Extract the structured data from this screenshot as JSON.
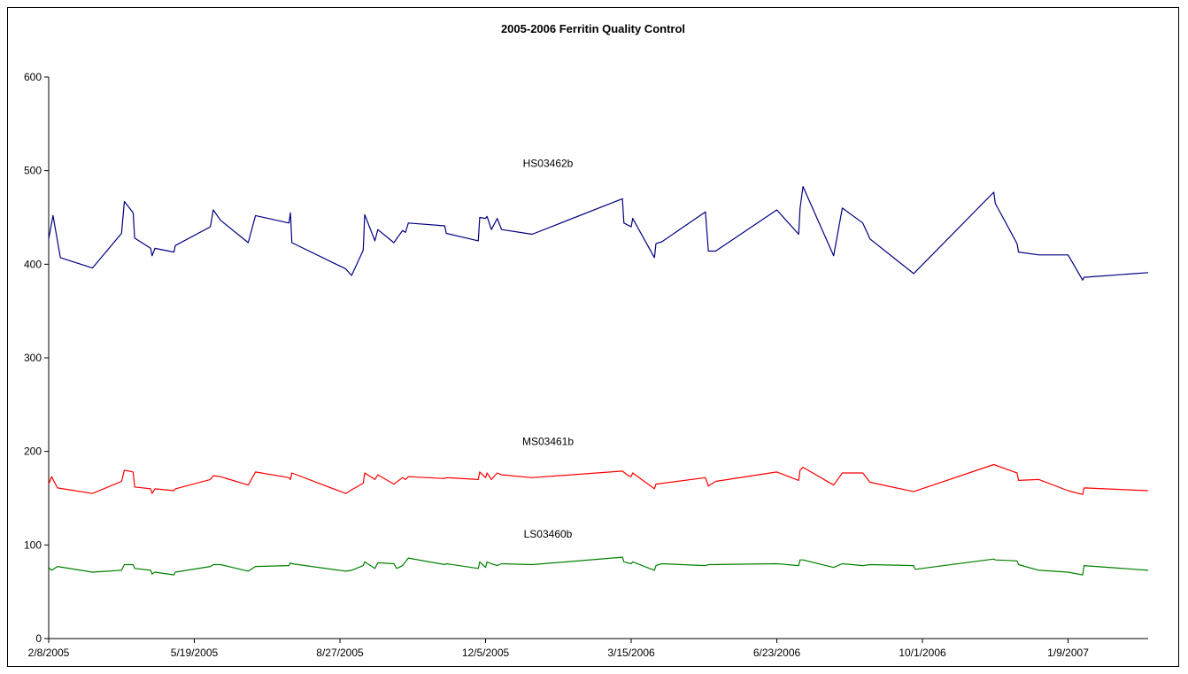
{
  "chart_data": {
    "type": "line",
    "title": "2005-2006 Ferritin Quality Control",
    "xlabel": "",
    "ylabel": "",
    "ylim": [
      0,
      600
    ],
    "yticks": [
      0,
      100,
      200,
      300,
      400,
      500,
      600
    ],
    "xlim": [
      "2005-02-08",
      "2007-03-05"
    ],
    "xticks": [
      {
        "date": "2005-02-08",
        "label": "2/8/2005"
      },
      {
        "date": "2005-05-19",
        "label": "5/19/2005"
      },
      {
        "date": "2005-08-27",
        "label": "8/27/2005"
      },
      {
        "date": "2005-12-05",
        "label": "12/5/2005"
      },
      {
        "date": "2006-03-15",
        "label": "3/15/2006"
      },
      {
        "date": "2006-06-23",
        "label": "6/23/2006"
      },
      {
        "date": "2006-10-01",
        "label": "10/1/2006"
      },
      {
        "date": "2007-01-09",
        "label": "1/9/2007"
      }
    ],
    "grid": false,
    "legend": "none",
    "series": [
      {
        "name": "HS03462b",
        "color": "#000080",
        "points": [
          [
            "2005-02-08",
            427
          ],
          [
            "2005-02-11",
            452
          ],
          [
            "2005-02-16",
            407
          ],
          [
            "2005-03-10",
            396
          ],
          [
            "2005-03-30",
            433
          ],
          [
            "2005-04-01",
            467
          ],
          [
            "2005-04-07",
            455
          ],
          [
            "2005-04-08",
            428
          ],
          [
            "2005-04-19",
            417
          ],
          [
            "2005-04-20",
            409
          ],
          [
            "2005-04-22",
            417
          ],
          [
            "2005-05-05",
            413
          ],
          [
            "2005-05-06",
            420
          ],
          [
            "2005-05-30",
            440
          ],
          [
            "2005-06-01",
            458
          ],
          [
            "2005-06-06",
            447
          ],
          [
            "2005-06-25",
            423
          ],
          [
            "2005-06-30",
            452
          ],
          [
            "2005-07-23",
            444
          ],
          [
            "2005-07-24",
            455
          ],
          [
            "2005-07-25",
            423
          ],
          [
            "2005-08-31",
            395
          ],
          [
            "2005-09-04",
            388
          ],
          [
            "2005-09-12",
            415
          ],
          [
            "2005-09-13",
            453
          ],
          [
            "2005-09-20",
            425
          ],
          [
            "2005-09-22",
            437
          ],
          [
            "2005-10-03",
            423
          ],
          [
            "2005-10-09",
            436
          ],
          [
            "2005-10-11",
            434
          ],
          [
            "2005-10-13",
            444
          ],
          [
            "2005-11-07",
            441
          ],
          [
            "2005-11-08",
            433
          ],
          [
            "2005-11-30",
            425
          ],
          [
            "2005-12-01",
            450
          ],
          [
            "2005-12-05",
            449
          ],
          [
            "2005-12-06",
            451
          ],
          [
            "2005-12-09",
            437
          ],
          [
            "2005-12-13",
            449
          ],
          [
            "2005-12-16",
            437
          ],
          [
            "2006-01-06",
            432
          ],
          [
            "2006-03-09",
            470
          ],
          [
            "2006-03-10",
            444
          ],
          [
            "2006-03-15",
            440
          ],
          [
            "2006-03-16",
            449
          ],
          [
            "2006-03-31",
            407
          ],
          [
            "2006-04-01",
            422
          ],
          [
            "2006-04-05",
            424
          ],
          [
            "2006-05-05",
            456
          ],
          [
            "2006-05-07",
            414
          ],
          [
            "2006-05-12",
            414
          ],
          [
            "2006-06-23",
            458
          ],
          [
            "2006-07-08",
            432
          ],
          [
            "2006-07-09",
            460
          ],
          [
            "2006-07-11",
            483
          ],
          [
            "2006-08-01",
            409
          ],
          [
            "2006-08-07",
            460
          ],
          [
            "2006-08-21",
            444
          ],
          [
            "2006-08-26",
            427
          ],
          [
            "2006-09-25",
            390
          ],
          [
            "2006-11-19",
            477
          ],
          [
            "2006-11-20",
            465
          ],
          [
            "2006-12-05",
            422
          ],
          [
            "2006-12-06",
            413
          ],
          [
            "2006-12-20",
            410
          ],
          [
            "2007-01-09",
            410
          ],
          [
            "2007-01-19",
            383
          ],
          [
            "2007-01-20",
            386
          ],
          [
            "2007-03-05",
            391
          ]
        ]
      },
      {
        "name": "MS03461b",
        "color": "#ff0000",
        "points": [
          [
            "2005-02-08",
            165
          ],
          [
            "2005-02-10",
            173
          ],
          [
            "2005-02-14",
            161
          ],
          [
            "2005-03-10",
            155
          ],
          [
            "2005-03-30",
            168
          ],
          [
            "2005-04-01",
            180
          ],
          [
            "2005-04-07",
            178
          ],
          [
            "2005-04-08",
            162
          ],
          [
            "2005-04-19",
            160
          ],
          [
            "2005-04-20",
            155
          ],
          [
            "2005-04-22",
            160
          ],
          [
            "2005-05-05",
            158
          ],
          [
            "2005-05-06",
            160
          ],
          [
            "2005-05-30",
            170
          ],
          [
            "2005-06-01",
            174
          ],
          [
            "2005-06-06",
            173
          ],
          [
            "2005-06-25",
            164
          ],
          [
            "2005-06-30",
            178
          ],
          [
            "2005-07-23",
            172
          ],
          [
            "2005-07-24",
            170
          ],
          [
            "2005-07-25",
            177
          ],
          [
            "2005-08-31",
            155
          ],
          [
            "2005-09-04",
            159
          ],
          [
            "2005-09-12",
            166
          ],
          [
            "2005-09-13",
            177
          ],
          [
            "2005-09-20",
            170
          ],
          [
            "2005-09-22",
            175
          ],
          [
            "2005-10-03",
            165
          ],
          [
            "2005-10-09",
            172
          ],
          [
            "2005-10-11",
            170
          ],
          [
            "2005-10-13",
            173
          ],
          [
            "2005-11-07",
            171
          ],
          [
            "2005-11-08",
            172
          ],
          [
            "2005-11-30",
            170
          ],
          [
            "2005-12-01",
            178
          ],
          [
            "2005-12-05",
            172
          ],
          [
            "2005-12-06",
            177
          ],
          [
            "2005-12-09",
            170
          ],
          [
            "2005-12-13",
            177
          ],
          [
            "2005-12-16",
            175
          ],
          [
            "2006-01-06",
            172
          ],
          [
            "2006-03-09",
            179
          ],
          [
            "2006-03-13",
            174
          ],
          [
            "2006-03-15",
            173
          ],
          [
            "2006-03-16",
            177
          ],
          [
            "2006-03-31",
            160
          ],
          [
            "2006-04-01",
            165
          ],
          [
            "2006-05-05",
            172
          ],
          [
            "2006-05-07",
            163
          ],
          [
            "2006-05-12",
            168
          ],
          [
            "2006-06-23",
            178
          ],
          [
            "2006-07-08",
            169
          ],
          [
            "2006-07-09",
            180
          ],
          [
            "2006-07-11",
            183
          ],
          [
            "2006-08-01",
            164
          ],
          [
            "2006-08-07",
            177
          ],
          [
            "2006-08-21",
            177
          ],
          [
            "2006-08-26",
            167
          ],
          [
            "2006-09-25",
            157
          ],
          [
            "2006-11-19",
            186
          ],
          [
            "2006-12-05",
            177
          ],
          [
            "2006-12-06",
            169
          ],
          [
            "2006-12-20",
            170
          ],
          [
            "2007-01-09",
            158
          ],
          [
            "2007-01-19",
            154
          ],
          [
            "2007-01-20",
            161
          ],
          [
            "2007-03-05",
            158
          ]
        ]
      },
      {
        "name": "LS03460b",
        "color": "#008000",
        "points": [
          [
            "2005-02-08",
            76
          ],
          [
            "2005-02-10",
            73
          ],
          [
            "2005-02-14",
            77
          ],
          [
            "2005-03-10",
            71
          ],
          [
            "2005-03-30",
            73
          ],
          [
            "2005-04-01",
            79
          ],
          [
            "2005-04-07",
            79
          ],
          [
            "2005-04-08",
            75
          ],
          [
            "2005-04-19",
            73
          ],
          [
            "2005-04-20",
            69
          ],
          [
            "2005-04-22",
            71
          ],
          [
            "2005-05-05",
            68
          ],
          [
            "2005-05-06",
            71
          ],
          [
            "2005-05-30",
            77
          ],
          [
            "2005-06-01",
            79
          ],
          [
            "2005-06-06",
            79
          ],
          [
            "2005-06-25",
            72
          ],
          [
            "2005-06-30",
            77
          ],
          [
            "2005-07-23",
            78
          ],
          [
            "2005-07-24",
            81
          ],
          [
            "2005-07-25",
            80
          ],
          [
            "2005-08-31",
            72
          ],
          [
            "2005-09-04",
            73
          ],
          [
            "2005-09-12",
            78
          ],
          [
            "2005-09-13",
            82
          ],
          [
            "2005-09-20",
            75
          ],
          [
            "2005-09-22",
            81
          ],
          [
            "2005-10-03",
            80
          ],
          [
            "2005-10-05",
            75
          ],
          [
            "2005-10-09",
            78
          ],
          [
            "2005-10-13",
            86
          ],
          [
            "2005-11-07",
            79
          ],
          [
            "2005-11-08",
            80
          ],
          [
            "2005-11-30",
            75
          ],
          [
            "2005-12-01",
            82
          ],
          [
            "2005-12-05",
            76
          ],
          [
            "2005-12-06",
            82
          ],
          [
            "2005-12-09",
            80
          ],
          [
            "2005-12-13",
            78
          ],
          [
            "2005-12-16",
            80
          ],
          [
            "2006-01-06",
            79
          ],
          [
            "2006-03-09",
            87
          ],
          [
            "2006-03-10",
            82
          ],
          [
            "2006-03-15",
            80
          ],
          [
            "2006-03-16",
            82
          ],
          [
            "2006-03-31",
            73
          ],
          [
            "2006-04-01",
            78
          ],
          [
            "2006-04-05",
            80
          ],
          [
            "2006-05-05",
            78
          ],
          [
            "2006-05-07",
            79
          ],
          [
            "2006-06-23",
            80
          ],
          [
            "2006-07-08",
            78
          ],
          [
            "2006-07-09",
            84
          ],
          [
            "2006-07-11",
            84
          ],
          [
            "2006-08-01",
            76
          ],
          [
            "2006-08-07",
            80
          ],
          [
            "2006-08-21",
            78
          ],
          [
            "2006-08-26",
            79
          ],
          [
            "2006-09-25",
            78
          ],
          [
            "2006-09-26",
            74
          ],
          [
            "2006-11-19",
            85
          ],
          [
            "2006-11-20",
            84
          ],
          [
            "2006-12-05",
            83
          ],
          [
            "2006-12-06",
            79
          ],
          [
            "2006-12-20",
            73
          ],
          [
            "2007-01-09",
            71
          ],
          [
            "2007-01-19",
            68
          ],
          [
            "2007-01-20",
            78
          ],
          [
            "2007-03-05",
            73
          ]
        ]
      }
    ]
  }
}
